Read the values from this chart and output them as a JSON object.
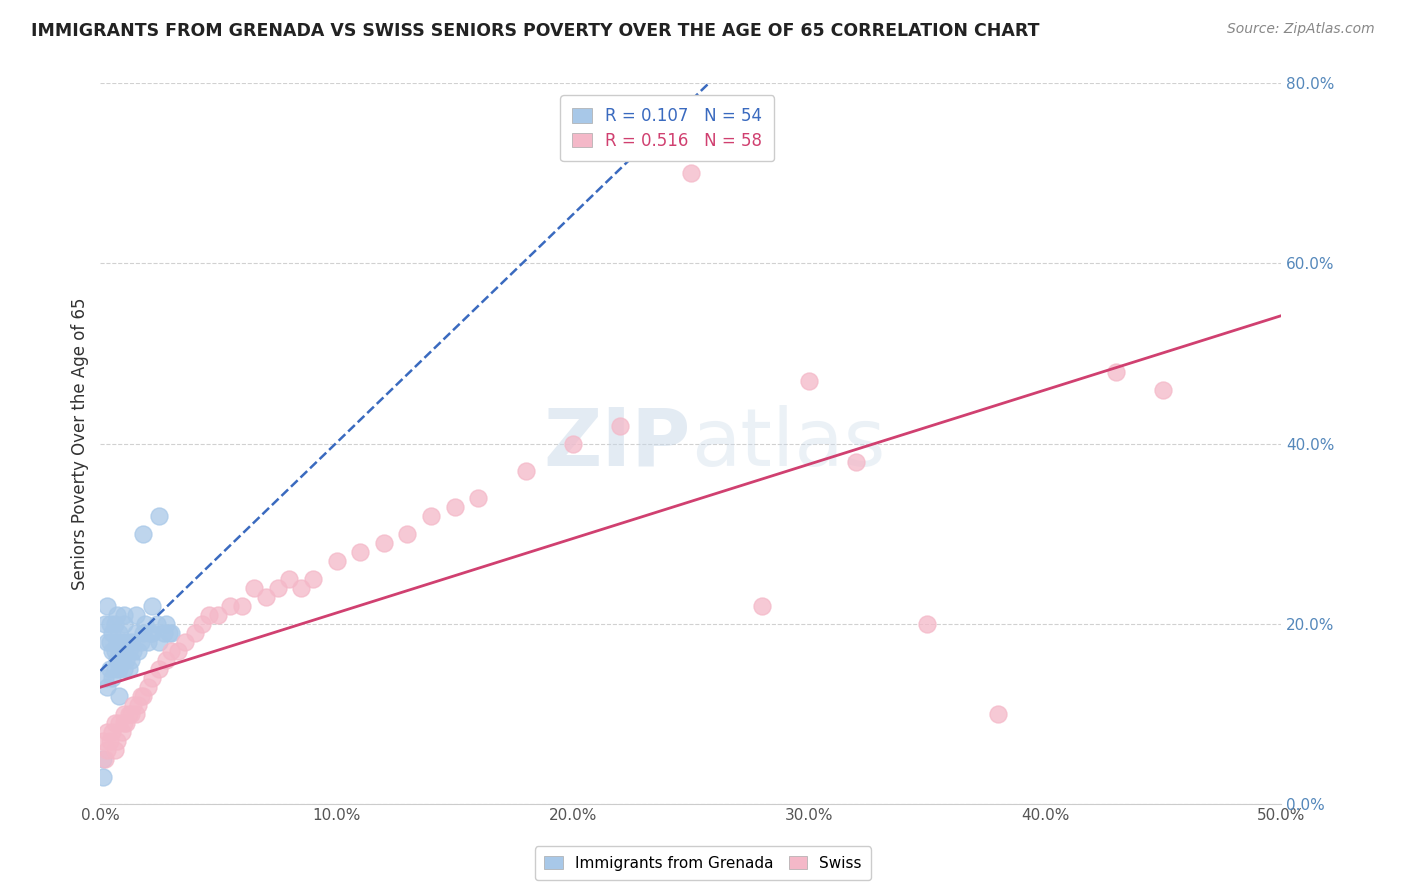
{
  "title": "IMMIGRANTS FROM GRENADA VS SWISS SENIORS POVERTY OVER THE AGE OF 65 CORRELATION CHART",
  "source": "Source: ZipAtlas.com",
  "ylabel": "Seniors Poverty Over the Age of 65",
  "legend_bottom": [
    "Immigrants from Grenada",
    "Swiss"
  ],
  "grenada_R": 0.107,
  "grenada_N": 54,
  "swiss_R": 0.516,
  "swiss_N": 58,
  "xlim": [
    0.0,
    0.5
  ],
  "ylim": [
    0.0,
    0.8
  ],
  "xticks": [
    0.0,
    0.1,
    0.2,
    0.3,
    0.4,
    0.5
  ],
  "yticks": [
    0.0,
    0.2,
    0.4,
    0.6,
    0.8
  ],
  "ytick_labels_right": [
    "0.0%",
    "20.0%",
    "40.0%",
    "60.0%",
    "80.0%"
  ],
  "xtick_labels": [
    "0.0%",
    "10.0%",
    "20.0%",
    "30.0%",
    "40.0%",
    "50.0%"
  ],
  "grenada_color": "#a8c8e8",
  "swiss_color": "#f4b8c8",
  "grenada_line_color": "#3a6abf",
  "swiss_line_color": "#d04070",
  "background_color": "#ffffff",
  "grenada_x": [
    0.001,
    0.001,
    0.002,
    0.002,
    0.003,
    0.003,
    0.003,
    0.004,
    0.004,
    0.004,
    0.005,
    0.005,
    0.005,
    0.006,
    0.006,
    0.006,
    0.007,
    0.007,
    0.007,
    0.008,
    0.008,
    0.008,
    0.009,
    0.009,
    0.01,
    0.01,
    0.01,
    0.011,
    0.011,
    0.012,
    0.012,
    0.013,
    0.013,
    0.014,
    0.015,
    0.015,
    0.016,
    0.017,
    0.018,
    0.019,
    0.02,
    0.021,
    0.022,
    0.024,
    0.025,
    0.027,
    0.028,
    0.029,
    0.03,
    0.025,
    0.018,
    0.022,
    0.01,
    0.008
  ],
  "grenada_y": [
    0.03,
    0.05,
    0.14,
    0.2,
    0.13,
    0.18,
    0.22,
    0.15,
    0.18,
    0.2,
    0.14,
    0.17,
    0.19,
    0.15,
    0.17,
    0.2,
    0.16,
    0.18,
    0.21,
    0.15,
    0.17,
    0.19,
    0.16,
    0.18,
    0.15,
    0.17,
    0.2,
    0.16,
    0.18,
    0.15,
    0.17,
    0.16,
    0.18,
    0.17,
    0.19,
    0.21,
    0.17,
    0.18,
    0.19,
    0.2,
    0.18,
    0.19,
    0.19,
    0.2,
    0.18,
    0.19,
    0.2,
    0.19,
    0.19,
    0.32,
    0.3,
    0.22,
    0.21,
    0.12
  ],
  "swiss_x": [
    0.001,
    0.002,
    0.003,
    0.003,
    0.004,
    0.005,
    0.006,
    0.006,
    0.007,
    0.008,
    0.009,
    0.01,
    0.01,
    0.011,
    0.012,
    0.013,
    0.014,
    0.015,
    0.016,
    0.017,
    0.018,
    0.02,
    0.022,
    0.025,
    0.028,
    0.03,
    0.033,
    0.036,
    0.04,
    0.043,
    0.046,
    0.05,
    0.055,
    0.06,
    0.065,
    0.07,
    0.075,
    0.08,
    0.085,
    0.09,
    0.1,
    0.11,
    0.12,
    0.13,
    0.14,
    0.15,
    0.16,
    0.18,
    0.2,
    0.22,
    0.25,
    0.28,
    0.3,
    0.32,
    0.35,
    0.38,
    0.43,
    0.45
  ],
  "swiss_y": [
    0.07,
    0.05,
    0.06,
    0.08,
    0.07,
    0.08,
    0.06,
    0.09,
    0.07,
    0.09,
    0.08,
    0.09,
    0.1,
    0.09,
    0.1,
    0.1,
    0.11,
    0.1,
    0.11,
    0.12,
    0.12,
    0.13,
    0.14,
    0.15,
    0.16,
    0.17,
    0.17,
    0.18,
    0.19,
    0.2,
    0.21,
    0.21,
    0.22,
    0.22,
    0.24,
    0.23,
    0.24,
    0.25,
    0.24,
    0.25,
    0.27,
    0.28,
    0.29,
    0.3,
    0.32,
    0.33,
    0.34,
    0.37,
    0.4,
    0.42,
    0.7,
    0.22,
    0.47,
    0.38,
    0.2,
    0.1,
    0.48,
    0.46
  ]
}
